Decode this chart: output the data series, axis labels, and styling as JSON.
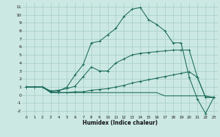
{
  "xlabel": "Humidex (Indice chaleur)",
  "xlim": [
    -0.5,
    23.5
  ],
  "ylim": [
    -2.5,
    11.5
  ],
  "yticks": [
    -2,
    -1,
    0,
    1,
    2,
    3,
    4,
    5,
    6,
    7,
    8,
    9,
    10,
    11
  ],
  "xticks": [
    0,
    1,
    2,
    3,
    4,
    5,
    6,
    7,
    8,
    9,
    10,
    11,
    12,
    13,
    14,
    15,
    16,
    17,
    18,
    19,
    20,
    21,
    22,
    23
  ],
  "bg_color": "#cce8e2",
  "grid_color": "#a0ccc6",
  "line_color": "#1a6b5a",
  "line1_y": [
    1,
    1,
    1,
    0.5,
    0.5,
    1.0,
    2.5,
    3.8,
    6.5,
    6.7,
    7.5,
    8.3,
    9.8,
    10.7,
    10.9,
    9.4,
    8.8,
    8.0,
    6.5,
    6.5,
    2.2,
    -0.5,
    -2.3,
    -0.3
  ],
  "line2_y": [
    1,
    1,
    1,
    0.5,
    0.6,
    0.8,
    1.1,
    2.3,
    3.5,
    3.0,
    3.0,
    4.0,
    4.5,
    5.0,
    5.2,
    5.3,
    5.4,
    5.5,
    5.6,
    5.6,
    5.6,
    2.2,
    -0.3,
    -0.3
  ],
  "line3_y": [
    1,
    1,
    1,
    0.4,
    0.3,
    0.3,
    0.4,
    0.4,
    0.6,
    0.7,
    0.8,
    1.0,
    1.2,
    1.5,
    1.7,
    1.9,
    2.1,
    2.3,
    2.5,
    2.7,
    2.9,
    2.2,
    -0.3,
    -0.3
  ],
  "line4_y": [
    1,
    1,
    1,
    0.3,
    0.3,
    0.3,
    0.3,
    0.3,
    0.3,
    0.3,
    0.3,
    0.3,
    0.3,
    0.3,
    0.3,
    0.3,
    0.3,
    -0.1,
    -0.1,
    -0.1,
    -0.1,
    -0.1,
    -0.1,
    -0.3
  ]
}
